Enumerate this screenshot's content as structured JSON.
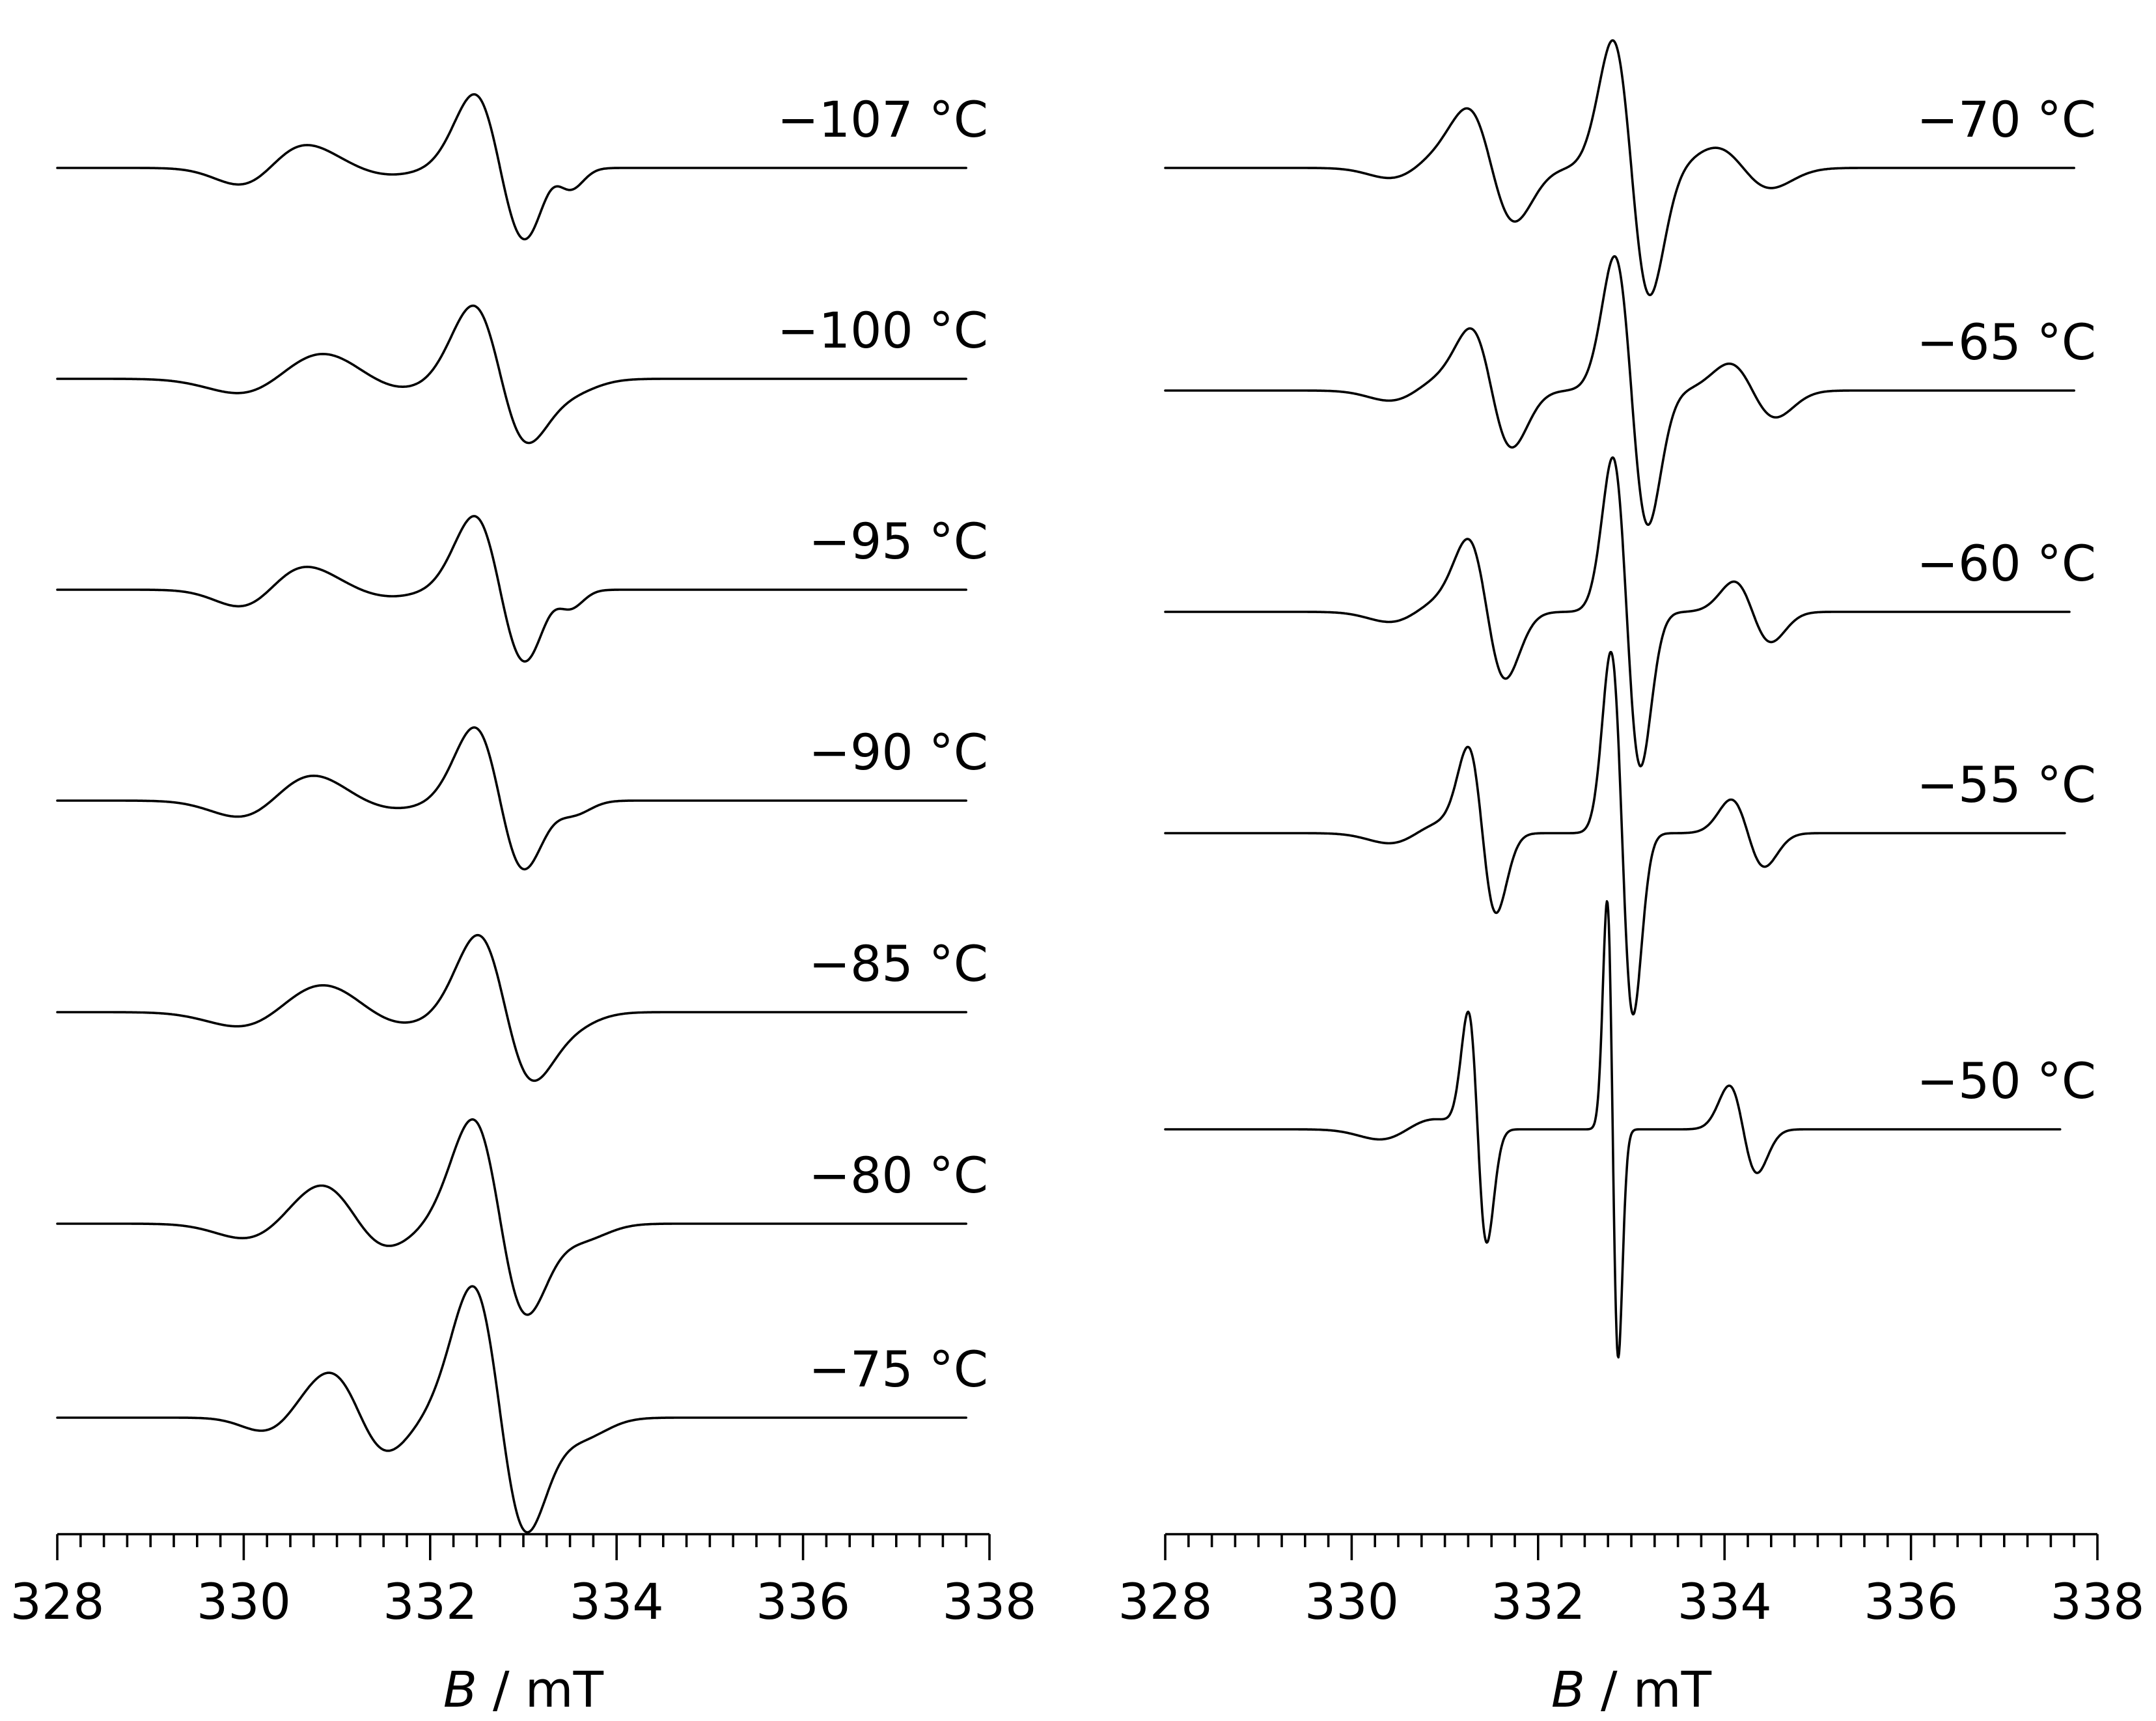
{
  "chart_data": [
    {
      "type": "line",
      "panel": "left",
      "xlabel_symbol": "B",
      "xlabel_sep": "/",
      "xlabel_unit": "mT",
      "xlim": [
        328,
        338
      ],
      "x_major_ticks": [
        328,
        330,
        332,
        334,
        336,
        338
      ],
      "x_tick_labels": [
        "328",
        "330",
        "332",
        "334",
        "336",
        "338"
      ],
      "x_minor_step": 0.25,
      "grid": false,
      "series": [
        {
          "name": "−107 °C",
          "peaks": [
            {
              "c": 330.3,
              "w": 0.35,
              "a": 0.25
            },
            {
              "c": 331.2,
              "w": 0.4,
              "a": -0.1
            },
            {
              "c": 332.75,
              "w": 0.28,
              "a": -1.1
            },
            {
              "c": 333.4,
              "w": 0.15,
              "a": -0.22
            }
          ]
        },
        {
          "name": "−100 °C",
          "peaks": [
            {
              "c": 330.4,
              "w": 0.45,
              "a": 0.22
            },
            {
              "c": 331.3,
              "w": 0.45,
              "a": -0.15
            },
            {
              "c": 332.75,
              "w": 0.3,
              "a": -1.1
            },
            {
              "c": 333.3,
              "w": 0.3,
              "a": -0.15
            }
          ]
        },
        {
          "name": "−95 °C",
          "peaks": [
            {
              "c": 330.3,
              "w": 0.35,
              "a": 0.25
            },
            {
              "c": 331.2,
              "w": 0.4,
              "a": -0.1
            },
            {
              "c": 332.75,
              "w": 0.28,
              "a": -1.1
            },
            {
              "c": 333.4,
              "w": 0.15,
              "a": -0.18
            }
          ]
        },
        {
          "name": "−90 °C",
          "peaks": [
            {
              "c": 330.35,
              "w": 0.4,
              "a": 0.25
            },
            {
              "c": 331.2,
              "w": 0.45,
              "a": -0.12
            },
            {
              "c": 332.75,
              "w": 0.28,
              "a": -1.1
            },
            {
              "c": 333.4,
              "w": 0.2,
              "a": -0.15
            }
          ]
        },
        {
          "name": "−85 °C",
          "peaks": [
            {
              "c": 330.4,
              "w": 0.45,
              "a": 0.22
            },
            {
              "c": 331.3,
              "w": 0.45,
              "a": -0.18
            },
            {
              "c": 332.8,
              "w": 0.3,
              "a": -1.15
            },
            {
              "c": 333.3,
              "w": 0.3,
              "a": -0.15
            }
          ]
        },
        {
          "name": "−80 °C",
          "peaks": [
            {
              "c": 330.4,
              "w": 0.4,
              "a": 0.22
            },
            {
              "c": 331.2,
              "w": 0.35,
              "a": -0.35
            },
            {
              "c": 332.75,
              "w": 0.3,
              "a": -1.55
            },
            {
              "c": 333.4,
              "w": 0.3,
              "a": -0.2
            }
          ]
        },
        {
          "name": "−75 °C",
          "peaks": [
            {
              "c": 330.5,
              "w": 0.3,
              "a": 0.2
            },
            {
              "c": 331.25,
              "w": 0.3,
              "a": -0.5
            },
            {
              "c": 332.75,
              "w": 0.3,
              "a": -1.95
            },
            {
              "c": 333.4,
              "w": 0.3,
              "a": -0.25
            }
          ]
        }
      ]
    },
    {
      "type": "line",
      "panel": "right",
      "xlabel_symbol": "B",
      "xlabel_sep": "/",
      "xlabel_unit": "mT",
      "xlim": [
        328,
        338
      ],
      "x_major_ticks": [
        328,
        330,
        332,
        334,
        336,
        338
      ],
      "x_tick_labels": [
        "328",
        "330",
        "332",
        "334",
        "336",
        "338"
      ],
      "x_minor_step": 0.25,
      "grid": false,
      "series": [
        {
          "name": "−70 °C",
          "peaks": [
            {
              "c": 330.7,
              "w": 0.3,
              "a": 0.15
            },
            {
              "c": 331.5,
              "w": 0.25,
              "a": -0.8
            },
            {
              "c": 333.0,
              "w": 0.2,
              "a": -1.9
            },
            {
              "c": 334.2,
              "w": 0.3,
              "a": -0.3
            }
          ]
        },
        {
          "name": "−65 °C",
          "peaks": [
            {
              "c": 330.7,
              "w": 0.3,
              "a": 0.15
            },
            {
              "c": 331.5,
              "w": 0.22,
              "a": -0.85
            },
            {
              "c": 333.0,
              "w": 0.18,
              "a": -2.0
            },
            {
              "c": 334.3,
              "w": 0.25,
              "a": -0.4
            }
          ]
        },
        {
          "name": "−60 °C",
          "peaks": [
            {
              "c": 330.7,
              "w": 0.3,
              "a": 0.15
            },
            {
              "c": 331.45,
              "w": 0.2,
              "a": -1.0
            },
            {
              "c": 332.95,
              "w": 0.15,
              "a": -2.3
            },
            {
              "c": 334.3,
              "w": 0.2,
              "a": -0.45
            }
          ]
        },
        {
          "name": "−55 °C",
          "peaks": [
            {
              "c": 330.7,
              "w": 0.3,
              "a": 0.15
            },
            {
              "c": 331.4,
              "w": 0.15,
              "a": -1.2
            },
            {
              "c": 332.9,
              "w": 0.12,
              "a": -2.7
            },
            {
              "c": 334.25,
              "w": 0.18,
              "a": -0.5
            }
          ]
        },
        {
          "name": "−50 °C",
          "peaks": [
            {
              "c": 330.6,
              "w": 0.3,
              "a": 0.15
            },
            {
              "c": 331.35,
              "w": 0.1,
              "a": -1.7
            },
            {
              "c": 332.8,
              "w": 0.06,
              "a": -3.4
            },
            {
              "c": 334.2,
              "w": 0.15,
              "a": -0.65
            }
          ]
        }
      ]
    }
  ]
}
